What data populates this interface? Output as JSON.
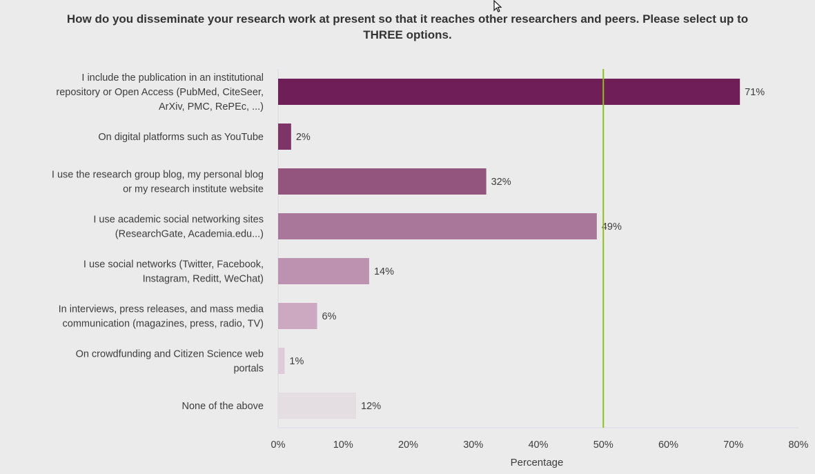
{
  "chart_data": {
    "type": "bar",
    "orientation": "horizontal",
    "title_lines": [
      "How do you disseminate your research work at present so that it reaches other researchers and peers. Please select up to",
      "THREE options."
    ],
    "categories": [
      [
        "I include the publication in an institutional",
        "repository or Open Access (PubMed, CiteSeer,",
        "ArXiv, PMC, RePEc, ...)"
      ],
      [
        "On digital platforms such as YouTube"
      ],
      [
        "I use the research group blog, my personal blog",
        "or my research institute website"
      ],
      [
        "I use academic social networking sites",
        "(ResearchGate, Academia.edu...)"
      ],
      [
        "I use social networks (Twitter, Facebook,",
        "Instagram, Reditt, WeChat)"
      ],
      [
        "In interviews, press releases, and mass media",
        "communication (magazines, press, radio, TV)"
      ],
      [
        "On crowdfunding and Citizen Science web",
        "portals"
      ],
      [
        "None of the above"
      ]
    ],
    "values": [
      71,
      2,
      32,
      49,
      14,
      6,
      1,
      12
    ],
    "value_labels": [
      "71%",
      "2%",
      "32%",
      "49%",
      "14%",
      "6%",
      "1%",
      "12%"
    ],
    "bar_colors": [
      "#701e57",
      "#7e3467",
      "#93547e",
      "#a97799",
      "#bd92b1",
      "#cca8c1",
      "#ddcbd7",
      "#e4dde2"
    ],
    "xlabel": "Percentage",
    "xlim": [
      0,
      80
    ],
    "x_ticks": [
      0,
      10,
      20,
      30,
      40,
      50,
      60,
      70,
      80
    ],
    "x_tick_labels": [
      "0%",
      "10%",
      "20%",
      "30%",
      "40%",
      "50%",
      "60%",
      "70%",
      "80%"
    ],
    "reference_line": {
      "value": 50,
      "color": "#8fbf1f"
    },
    "grid": false,
    "legend": "none"
  }
}
